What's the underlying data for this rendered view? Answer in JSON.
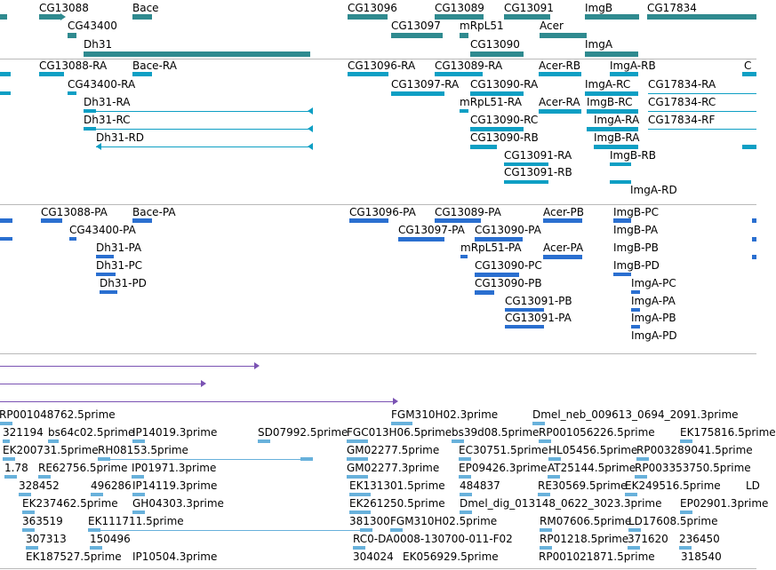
{
  "genes": [
    "CG13088",
    "Bace",
    "CG13096",
    "CG13089",
    "CG13091",
    "ImgB",
    "CG17834",
    "CG43400",
    "CG13097",
    "mRpL51",
    "Acer",
    "Dh31",
    "CG13090",
    "ImgA"
  ],
  "transcripts": [
    "CG13088-RA",
    "Bace-RA",
    "CG13096-RA",
    "CG13089-RA",
    "Acer-RB",
    "ImgA-RB",
    "CG43400-RA",
    "CG13097-RA",
    "CG13090-RA",
    "ImgA-RC",
    "CG17834-RA",
    "Dh31-RA",
    "mRpL51-RA",
    "Acer-RA",
    "ImgB-RC",
    "CG17834-RC",
    "Dh31-RC",
    "CG13090-RC",
    "ImgA-RA",
    "CG17834-RF",
    "Dh31-RD",
    "CG13090-RB",
    "ImgB-RA",
    "CG13091-RA",
    "ImgB-RB",
    "CG13091-RB",
    "ImgA-RD"
  ],
  "proteins": [
    "CG13088-PA",
    "Bace-PA",
    "CG13096-PA",
    "CG13089-PA",
    "Acer-PB",
    "ImgB-PC",
    "CG43400-PA",
    "CG13097-PA",
    "CG13090-PA",
    "ImgB-PA",
    "Dh31-PA",
    "mRpL51-PA",
    "Acer-PA",
    "ImgB-PB",
    "Dh31-PC",
    "CG13090-PC",
    "ImgB-PD",
    "Dh31-PD",
    "CG13090-PB",
    "ImgA-PC",
    "CG13091-PB",
    "ImgA-PA",
    "CG13091-PA",
    "ImgA-PB",
    "ImgA-PD"
  ],
  "ests": [
    "RP001048762.5prime",
    "FGM310H02.3prime",
    "Dmel_neb_009613_0694_2091.3prime",
    "321194",
    "bs64c02.5prime",
    "IP14019.3prime",
    "SD07992.5prime",
    "FGC013H06.5prime",
    "bs39d08.5prime",
    "RP001056226.5prime",
    "EK175816.5prime",
    "EK200731.5prime",
    "RH08153.5prime",
    "GM02277.5prime",
    "EC30751.5prime",
    "HL05456.5prime",
    "RP003289041.5prime",
    "1.78",
    "RE62756.5prime",
    "IP01971.3prime",
    "GM02277.3prime",
    "EP09426.3prime",
    "AT25144.5prime",
    "RP003353750.5prime",
    "328452",
    "496286",
    "IP14119.3prime",
    "EK131301.5prime",
    "484837",
    "RE30569.5prime",
    "EK249516.5prime",
    "EK237462.5prime",
    "GH04303.3prime",
    "EK261250.5prime",
    "Dmel_dig_013148_0622_3023.3prime",
    "EP02901.3prime",
    "363519",
    "EK111711.5prime",
    "381300",
    "FGM310H02.5prime",
    "RM07606.5prime",
    "LD17608.5prime",
    "307313",
    "150496",
    "RC0-DA0008-130700-011-F02",
    "RP01218.5prime",
    "371620",
    "236450",
    "EK187527.5prime",
    "IP10504.3prime",
    "304024",
    "EK056929.5prime",
    "RP001021871.5prime",
    "318540"
  ]
}
